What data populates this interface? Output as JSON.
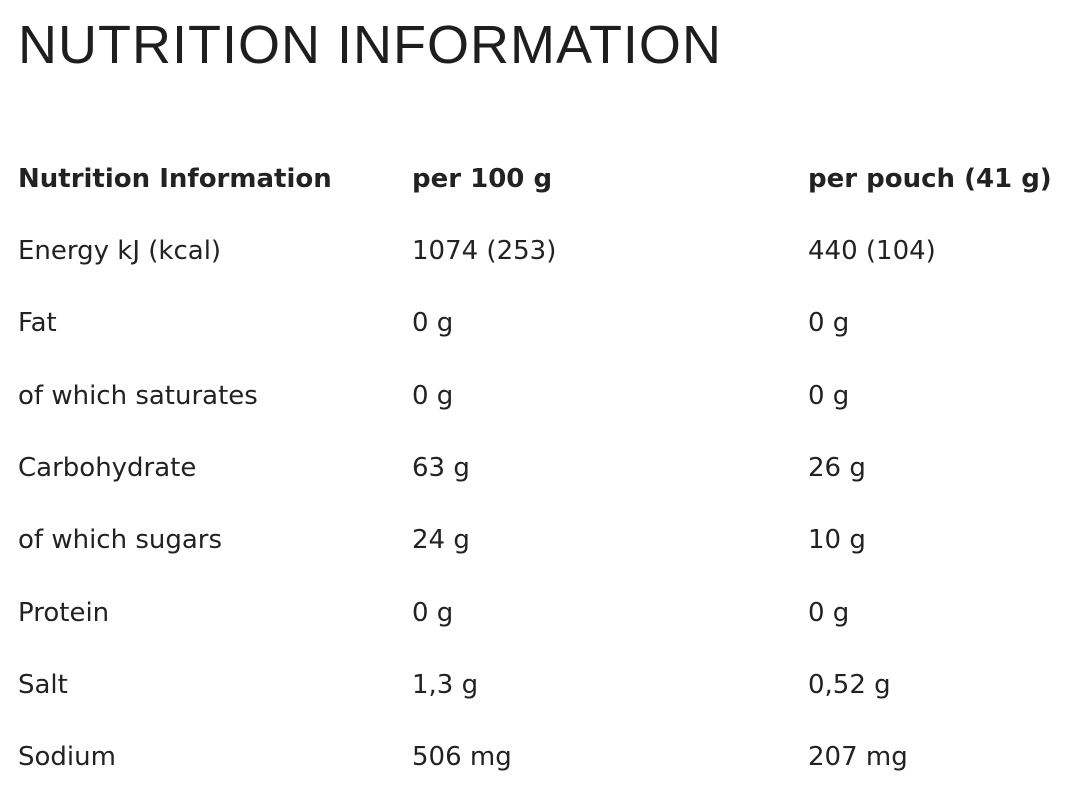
{
  "header": {
    "title": "NUTRITION INFORMATION"
  },
  "table": {
    "columns": [
      "Nutrition Information",
      "per 100 g",
      "per pouch (41 g)"
    ],
    "rows": [
      [
        "Energy kJ (kcal)",
        "1074 (253)",
        "440 (104)"
      ],
      [
        "Fat",
        "0 g",
        "0 g"
      ],
      [
        "of which saturates",
        "0 g",
        "0 g"
      ],
      [
        "Carbohydrate",
        "63 g",
        "26 g"
      ],
      [
        "of which sugars",
        "24 g",
        "10 g"
      ],
      [
        "Protein",
        "0 g",
        "0 g"
      ],
      [
        "Salt",
        "1,3 g",
        "0,52 g"
      ],
      [
        "Sodium",
        "506 mg",
        "207 mg"
      ]
    ]
  }
}
